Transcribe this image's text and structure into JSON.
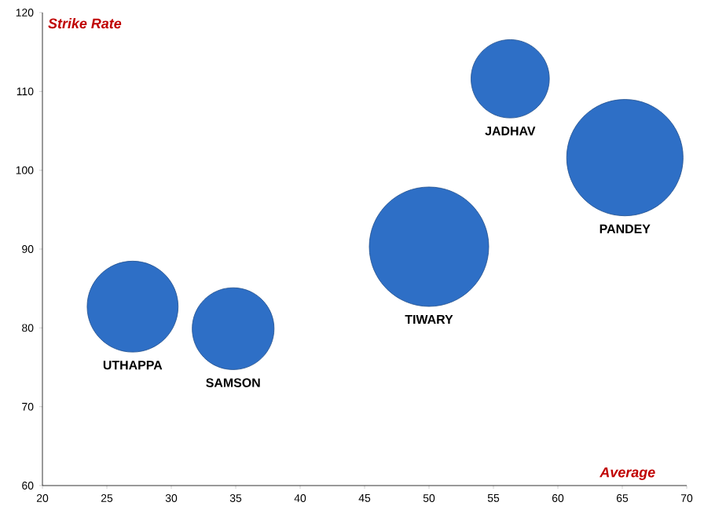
{
  "chart_data": {
    "type": "bubble",
    "xlabel": "Average",
    "ylabel": "Strike Rate",
    "series": [
      {
        "name": "UTHAPPA",
        "color": "#2e6fc6",
        "x": [
          27.0
        ],
        "values": [
          82.7
        ],
        "sizes": [
          0.58
        ]
      },
      {
        "name": "SAMSON",
        "color": "#2e6fc6",
        "x": [
          34.8
        ],
        "values": [
          79.9
        ],
        "sizes": [
          0.47
        ]
      },
      {
        "name": "TIWARY",
        "color": "#2e6fc6",
        "x": [
          50.0
        ],
        "values": [
          90.3
        ],
        "sizes": [
          1
        ]
      },
      {
        "name": "JADHAV",
        "color": "#2e6fc6",
        "x": [
          56.3
        ],
        "values": [
          111.6
        ],
        "sizes": [
          0.43
        ]
      },
      {
        "name": "PANDEY",
        "color": "#2e6fc6",
        "x": [
          65.2
        ],
        "values": [
          101.6
        ],
        "sizes": [
          0.95
        ]
      }
    ],
    "xlim": [
      20,
      70
    ],
    "xticks": [
      20,
      25,
      30,
      35,
      40,
      45,
      50,
      55,
      60,
      65,
      70
    ],
    "ylim": [
      60,
      120
    ],
    "yticks": [
      60,
      70,
      80,
      90,
      100,
      110,
      120
    ],
    "grid": false
  }
}
